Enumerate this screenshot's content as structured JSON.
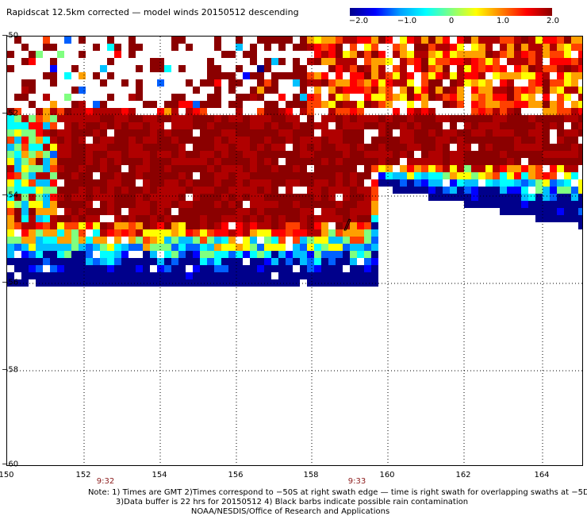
{
  "title": "Rapidscat 12.5km corrected — model winds 20150512 descending",
  "colorbar": {
    "labels": [
      "−2.0",
      "−1.0",
      "0",
      "1.0",
      "2.0"
    ],
    "values": [
      -2.0,
      -1.0,
      0,
      1.0,
      2.0
    ],
    "colors": [
      "#00008b",
      "#0000ff",
      "#00a0ff",
      "#00ffff",
      "#80ff80",
      "#ffff00",
      "#ff8000",
      "#ff0000",
      "#8b0000"
    ]
  },
  "axes": {
    "lat_labels": [
      "−50",
      "−52",
      "−54",
      "−56",
      "−58",
      "−60"
    ],
    "lat_values": [
      -50,
      -52,
      -54,
      -56,
      -58,
      -60
    ],
    "lon_labels": [
      "150",
      "152",
      "154",
      "156",
      "158",
      "160",
      "162",
      "164"
    ],
    "lon_values": [
      150,
      152,
      154,
      156,
      158,
      160,
      162,
      164
    ],
    "grid": true
  },
  "times": [
    "9:32",
    "9:33"
  ],
  "notes": [
    "Note: 1) Times are GMT 2)Times correspond to −50S at right swath edge — time is right swath for overlapping swaths at −5DS",
    "3)Data buffer is 22 hrs for 20150512 4) Black barbs indicate possible rain contamination",
    "NOAA/NESDIS/Office of Research and Applications"
  ]
}
